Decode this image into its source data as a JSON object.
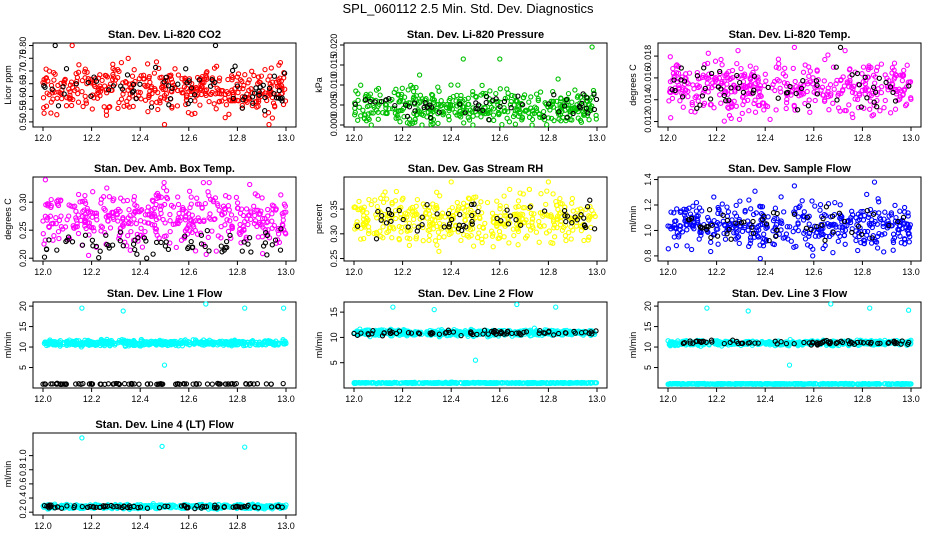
{
  "figure_title": "SPL_060112  2.5 Min. Std. Dev. Diagnostics",
  "colors": {
    "red": "#ff0000",
    "green": "#00c000",
    "magenta": "#ff00ff",
    "yellow": "#ffff00",
    "blue": "#0000ff",
    "cyan": "#00ffff",
    "black": "#000000"
  },
  "chart_data": [
    {
      "type": "scatter",
      "title": "Stan. Dev. Li-820 CO2",
      "ylabel": "Licor ppm",
      "xlim": [
        12.0,
        13.0
      ],
      "ylim": [
        0.48,
        0.81
      ],
      "xticks": [
        "12.0",
        "12.2",
        "12.4",
        "12.6",
        "12.8",
        "13.0"
      ],
      "yticks": [
        {
          "v": 0.5,
          "label": "0.50"
        },
        {
          "v": 0.55,
          "label": "0.55"
        },
        {
          "v": 0.6,
          "label": "0.60"
        },
        {
          "v": 0.65,
          "label": "0.65"
        },
        {
          "v": 0.7,
          "label": "0.70"
        },
        {
          "v": 0.75,
          "label": "0.75"
        },
        {
          "v": 0.8,
          "label": "0.80"
        }
      ],
      "series": [
        {
          "name": "main",
          "color": "#ff0000",
          "n": 420,
          "center": 0.63,
          "spread": 0.045,
          "min": 0.49,
          "max": 0.8,
          "outliers": [
            [
              12.12,
              0.8
            ],
            [
              12.5,
              0.49
            ],
            [
              12.93,
              0.49
            ]
          ]
        },
        {
          "name": "black",
          "color": "#000000",
          "n": 70,
          "center": 0.625,
          "spread": 0.04,
          "min": 0.5,
          "max": 0.8,
          "outliers": [
            [
              12.05,
              0.8
            ],
            [
              12.71,
              0.8
            ]
          ]
        }
      ]
    },
    {
      "type": "scatter",
      "title": "Stan. Dev. Li-820 Pressure",
      "ylabel": "kPa",
      "xlim": [
        12.0,
        13.0
      ],
      "ylim": [
        -0.0005,
        0.0205
      ],
      "xticks": [
        "12.0",
        "12.2",
        "12.4",
        "12.6",
        "12.8",
        "13.0"
      ],
      "yticks": [
        {
          "v": 0.0,
          "label": "0.000"
        },
        {
          "v": 0.005,
          "label": "0.005"
        },
        {
          "v": 0.01,
          "label": "0.010"
        },
        {
          "v": 0.015,
          "label": "0.015"
        },
        {
          "v": 0.02,
          "label": "0.020"
        }
      ],
      "series": [
        {
          "name": "main",
          "color": "#00c000",
          "n": 420,
          "center": 0.0045,
          "spread": 0.0022,
          "min": 0.0,
          "max": 0.0125,
          "outliers": [
            [
              12.45,
              0.0165
            ],
            [
              12.6,
              0.0165
            ],
            [
              12.98,
              0.0195
            ],
            [
              12.27,
              0.0125
            ],
            [
              12.84,
              0.0115
            ]
          ]
        },
        {
          "name": "black",
          "color": "#000000",
          "n": 55,
          "center": 0.005,
          "spread": 0.0018,
          "min": 0.001,
          "max": 0.0095,
          "outliers": []
        }
      ]
    },
    {
      "type": "scatter",
      "title": "Stan. Dev. Li-820 Temp.",
      "ylabel": "degrees C",
      "xlim": [
        12.0,
        13.0
      ],
      "ylim": [
        0.0115,
        0.0192
      ],
      "xticks": [
        "12.0",
        "12.2",
        "12.4",
        "12.6",
        "12.8",
        "13.0"
      ],
      "yticks": [
        {
          "v": 0.012,
          "label": "0.012"
        },
        {
          "v": 0.014,
          "label": "0.014"
        },
        {
          "v": 0.016,
          "label": "0.016"
        },
        {
          "v": 0.018,
          "label": "0.018"
        }
      ],
      "series": [
        {
          "name": "main",
          "color": "#ff00ff",
          "n": 420,
          "center": 0.0152,
          "spread": 0.0012,
          "min": 0.0118,
          "max": 0.0185,
          "outliers": [
            [
              12.52,
              0.0188
            ],
            [
              12.42,
              0.0122
            ]
          ]
        },
        {
          "name": "black",
          "color": "#000000",
          "n": 60,
          "center": 0.015,
          "spread": 0.001,
          "min": 0.0125,
          "max": 0.0188,
          "outliers": [
            [
              12.71,
              0.0188
            ]
          ]
        }
      ]
    },
    {
      "type": "scatter",
      "title": "Stan. Dev. Amb. Box Temp.",
      "ylabel": "degrees C",
      "xlim": [
        12.0,
        13.0
      ],
      "ylim": [
        0.195,
        0.345
      ],
      "xticks": [
        "12.0",
        "12.2",
        "12.4",
        "12.6",
        "12.8",
        "13.0"
      ],
      "yticks": [
        {
          "v": 0.2,
          "label": "0.20"
        },
        {
          "v": 0.25,
          "label": "0.25"
        },
        {
          "v": 0.3,
          "label": "0.30"
        }
      ],
      "series": [
        {
          "name": "main",
          "color": "#ff00ff",
          "n": 420,
          "center": 0.27,
          "spread": 0.025,
          "min": 0.2,
          "max": 0.335,
          "outliers": [
            [
              12.01,
              0.34
            ],
            [
              12.66,
              0.335
            ]
          ]
        },
        {
          "name": "black",
          "color": "#000000",
          "n": 70,
          "center": 0.225,
          "spread": 0.012,
          "min": 0.2,
          "max": 0.26,
          "outliers": []
        }
      ]
    },
    {
      "type": "scatter",
      "title": "Stan. Dev. Gas Stream RH",
      "ylabel": "percent",
      "xlim": [
        12.0,
        13.0
      ],
      "ylim": [
        0.245,
        0.415
      ],
      "xticks": [
        "12.0",
        "12.2",
        "12.4",
        "12.6",
        "12.8",
        "13.0"
      ],
      "yticks": [
        {
          "v": 0.25,
          "label": "0.25"
        },
        {
          "v": 0.3,
          "label": "0.30"
        },
        {
          "v": 0.35,
          "label": "0.35"
        }
      ],
      "series": [
        {
          "name": "main",
          "color": "#ffff00",
          "n": 420,
          "center": 0.33,
          "spread": 0.025,
          "min": 0.255,
          "max": 0.39,
          "outliers": [
            [
              12.4,
              0.405
            ],
            [
              12.8,
              0.405
            ]
          ]
        },
        {
          "name": "black",
          "color": "#000000",
          "n": 60,
          "center": 0.33,
          "spread": 0.02,
          "min": 0.29,
          "max": 0.375,
          "outliers": []
        }
      ]
    },
    {
      "type": "scatter",
      "title": "Stan. Dev. Sample Flow",
      "ylabel": "ml/min",
      "xlim": [
        12.0,
        13.0
      ],
      "ylim": [
        0.76,
        1.42
      ],
      "xticks": [
        "12.0",
        "12.2",
        "12.4",
        "12.6",
        "12.8",
        "13.0"
      ],
      "yticks": [
        {
          "v": 0.8,
          "label": "0.8"
        },
        {
          "v": 1.0,
          "label": "1.0"
        },
        {
          "v": 1.2,
          "label": "1.2"
        },
        {
          "v": 1.4,
          "label": "1.4"
        }
      ],
      "series": [
        {
          "name": "main",
          "color": "#0000ff",
          "n": 420,
          "center": 1.04,
          "spread": 0.09,
          "min": 0.8,
          "max": 1.32,
          "outliers": [
            [
              12.85,
              1.38
            ],
            [
              12.52,
              1.35
            ],
            [
              12.38,
              0.78
            ]
          ]
        },
        {
          "name": "black",
          "color": "#000000",
          "n": 55,
          "center": 1.05,
          "spread": 0.06,
          "min": 0.92,
          "max": 1.2,
          "outliers": []
        }
      ]
    },
    {
      "type": "scatter",
      "title": "Stan. Dev. Line 1 Flow",
      "ylabel": "ml/min",
      "xlim": [
        12.0,
        13.0
      ],
      "ylim": [
        0.0,
        21.0
      ],
      "xticks": [
        "12.0",
        "12.2",
        "12.4",
        "12.6",
        "12.8",
        "13.0"
      ],
      "yticks": [
        {
          "v": 5,
          "label": "5"
        },
        {
          "v": 10,
          "label": "10"
        },
        {
          "v": 15,
          "label": "15"
        },
        {
          "v": 20,
          "label": "20"
        }
      ],
      "series": [
        {
          "name": "main",
          "color": "#00ffff",
          "n": 500,
          "center": 11.0,
          "spread": 0.35,
          "min": 10.0,
          "max": 12.3,
          "outliers": [
            [
              12.16,
              19.5
            ],
            [
              12.33,
              18.8
            ],
            [
              12.67,
              20.5
            ],
            [
              12.83,
              19.5
            ],
            [
              12.99,
              19.5
            ],
            [
              12.5,
              5.6
            ]
          ]
        },
        {
          "name": "black",
          "color": "#000000",
          "n": 90,
          "center": 1.0,
          "spread": 0.05,
          "min": 0.8,
          "max": 1.2,
          "outliers": []
        }
      ]
    },
    {
      "type": "scatter",
      "title": "Stan. Dev. Line 2 Flow",
      "ylabel": "ml/min",
      "xlim": [
        12.0,
        13.0
      ],
      "ylim": [
        0.0,
        17.0
      ],
      "xticks": [
        "12.0",
        "12.2",
        "12.4",
        "12.6",
        "12.8",
        "13.0"
      ],
      "yticks": [
        {
          "v": 5,
          "label": "5"
        },
        {
          "v": 10,
          "label": "10"
        },
        {
          "v": 15,
          "label": "15"
        }
      ],
      "series": [
        {
          "name": "main",
          "color": "#00ffff",
          "n": 500,
          "center": 10.9,
          "spread": 0.3,
          "min": 10.0,
          "max": 12.0,
          "outliers": [
            [
              12.16,
              16.0
            ],
            [
              12.33,
              15.5
            ],
            [
              12.67,
              16.5
            ],
            [
              12.83,
              16.0
            ],
            [
              12.5,
              5.5
            ]
          ]
        },
        {
          "name": "main-low",
          "color": "#00ffff",
          "n": 400,
          "center": 1.0,
          "spread": 0.05,
          "min": 0.8,
          "max": 1.2,
          "outliers": []
        },
        {
          "name": "black",
          "color": "#000000",
          "n": 80,
          "center": 10.9,
          "spread": 0.25,
          "min": 10.2,
          "max": 11.6,
          "outliers": []
        }
      ]
    },
    {
      "type": "scatter",
      "title": "Stan. Dev. Line 3 Flow",
      "ylabel": "ml/min",
      "xlim": [
        12.0,
        13.0
      ],
      "ylim": [
        0.0,
        21.0
      ],
      "xticks": [
        "12.0",
        "12.2",
        "12.4",
        "12.6",
        "12.8",
        "13.0"
      ],
      "yticks": [
        {
          "v": 5,
          "label": "5"
        },
        {
          "v": 10,
          "label": "10"
        },
        {
          "v": 15,
          "label": "15"
        },
        {
          "v": 20,
          "label": "20"
        }
      ],
      "series": [
        {
          "name": "main",
          "color": "#00ffff",
          "n": 500,
          "center": 11.0,
          "spread": 0.3,
          "min": 10.0,
          "max": 12.3,
          "outliers": [
            [
              12.16,
              19.5
            ],
            [
              12.33,
              18.8
            ],
            [
              12.67,
              20.5
            ],
            [
              12.83,
              19.5
            ],
            [
              12.99,
              19.0
            ],
            [
              12.5,
              5.6
            ]
          ]
        },
        {
          "name": "main-low",
          "color": "#00ffff",
          "n": 400,
          "center": 1.0,
          "spread": 0.05,
          "min": 0.8,
          "max": 1.2,
          "outliers": []
        },
        {
          "name": "black",
          "color": "#000000",
          "n": 80,
          "center": 11.1,
          "spread": 0.25,
          "min": 10.5,
          "max": 12.0,
          "outliers": []
        }
      ]
    },
    {
      "type": "scatter",
      "title": "Stan. Dev. Line 4 (LT) Flow",
      "ylabel": "ml/min",
      "xlim": [
        12.0,
        13.0
      ],
      "ylim": [
        0.16,
        1.32
      ],
      "xticks": [
        "12.0",
        "12.2",
        "12.4",
        "12.6",
        "12.8",
        "13.0"
      ],
      "yticks": [
        {
          "v": 0.2,
          "label": "0.2"
        },
        {
          "v": 0.4,
          "label": "0.4"
        },
        {
          "v": 0.6,
          "label": "0.6"
        },
        {
          "v": 0.8,
          "label": "0.8"
        },
        {
          "v": 1.0,
          "label": "1.0"
        }
      ],
      "series": [
        {
          "name": "main",
          "color": "#00ffff",
          "n": 500,
          "center": 0.28,
          "spread": 0.015,
          "min": 0.24,
          "max": 0.33,
          "outliers": [
            [
              12.16,
              1.25
            ],
            [
              12.49,
              1.13
            ],
            [
              12.83,
              1.12
            ]
          ]
        },
        {
          "name": "black",
          "color": "#000000",
          "n": 80,
          "center": 0.275,
          "spread": 0.012,
          "min": 0.25,
          "max": 0.31,
          "outliers": []
        }
      ]
    }
  ]
}
